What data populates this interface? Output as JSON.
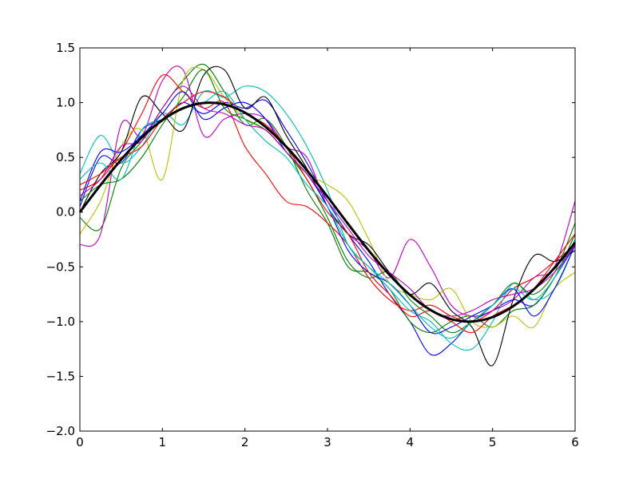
{
  "chart_data": {
    "type": "line",
    "title": "",
    "xlabel": "",
    "ylabel": "",
    "xlim": [
      0,
      6
    ],
    "ylim": [
      -2.0,
      1.5
    ],
    "x_ticks": [
      0,
      1,
      2,
      3,
      4,
      5,
      6
    ],
    "x_tick_labels": [
      "0",
      "1",
      "2",
      "3",
      "4",
      "5",
      "6"
    ],
    "y_ticks": [
      -2.0,
      -1.5,
      -1.0,
      -0.5,
      0.0,
      0.5,
      1.0,
      1.5
    ],
    "y_tick_labels": [
      "−2.0",
      "−1.5",
      "−1.0",
      "−0.5",
      "0.0",
      "0.5",
      "1.0",
      "1.5"
    ],
    "grid": false,
    "legend": "none",
    "x": [
      0,
      0.25,
      0.5,
      0.75,
      1.0,
      1.25,
      1.5,
      1.75,
      2.0,
      2.25,
      2.5,
      2.75,
      3.0,
      3.25,
      3.5,
      3.75,
      4.0,
      4.25,
      4.5,
      4.75,
      5.0,
      5.25,
      5.5,
      5.75,
      6.0
    ],
    "series": [
      {
        "color": "#0000ff",
        "values": [
          0.05,
          0.5,
          0.45,
          0.75,
          0.85,
          1.0,
          0.9,
          1.0,
          0.95,
          1.02,
          0.75,
          0.45,
          0.1,
          -0.2,
          -0.45,
          -0.75,
          -1.0,
          -1.3,
          -1.2,
          -1.0,
          -0.9,
          -0.8,
          -0.85,
          -0.6,
          -0.3
        ]
      },
      {
        "color": "#008000",
        "values": [
          -0.05,
          -0.15,
          0.4,
          0.65,
          0.95,
          1.2,
          1.35,
          1.1,
          0.8,
          0.85,
          0.6,
          0.2,
          -0.1,
          -0.5,
          -0.55,
          -0.7,
          -1.0,
          -1.1,
          -1.0,
          -0.95,
          -1.05,
          -0.9,
          -0.85,
          -0.6,
          -0.2
        ]
      },
      {
        "color": "#ff0000",
        "values": [
          0.2,
          0.3,
          0.55,
          0.9,
          1.25,
          1.1,
          0.95,
          1.0,
          0.6,
          0.35,
          0.1,
          0.05,
          -0.1,
          -0.3,
          -0.6,
          -0.8,
          -0.9,
          -0.85,
          -0.95,
          -1.0,
          -0.9,
          -0.7,
          -0.6,
          -0.45,
          -0.3
        ]
      },
      {
        "color": "#00bfbf",
        "values": [
          0.35,
          0.7,
          0.45,
          0.6,
          0.9,
          0.8,
          1.1,
          1.05,
          1.15,
          1.1,
          0.9,
          0.6,
          0.2,
          -0.3,
          -0.5,
          -0.7,
          -0.9,
          -1.0,
          -1.2,
          -1.25,
          -1.0,
          -0.65,
          -0.8,
          -0.7,
          -0.3
        ]
      },
      {
        "color": "#bf00bf",
        "values": [
          -0.3,
          -0.2,
          0.8,
          0.7,
          1.2,
          1.3,
          0.7,
          0.85,
          0.9,
          0.85,
          0.6,
          0.5,
          0.05,
          -0.2,
          -0.35,
          -0.6,
          -0.25,
          -0.5,
          -0.85,
          -0.95,
          -0.9,
          -0.8,
          -0.6,
          -0.5,
          0.1
        ]
      },
      {
        "color": "#bfbf00",
        "values": [
          -0.2,
          0.1,
          0.6,
          0.75,
          0.3,
          1.2,
          1.3,
          1.05,
          0.85,
          0.75,
          0.55,
          0.35,
          0.25,
          0.1,
          -0.25,
          -0.65,
          -0.75,
          -0.8,
          -0.7,
          -1.0,
          -1.05,
          -0.95,
          -1.05,
          -0.7,
          -0.55
        ]
      },
      {
        "color": "#000000",
        "values": [
          0.0,
          0.35,
          0.55,
          1.05,
          0.9,
          0.75,
          1.25,
          1.3,
          0.95,
          1.05,
          0.7,
          0.4,
          0.05,
          -0.2,
          -0.3,
          -0.55,
          -0.75,
          -0.65,
          -0.9,
          -1.05,
          -1.4,
          -0.8,
          -0.4,
          -0.45,
          -0.35
        ]
      },
      {
        "color": "#0000ff",
        "values": [
          0.1,
          0.55,
          0.55,
          0.7,
          0.9,
          1.1,
          0.85,
          0.95,
          1.0,
          0.85,
          0.55,
          0.35,
          0.05,
          -0.35,
          -0.55,
          -0.65,
          -0.85,
          -1.1,
          -1.05,
          -0.95,
          -0.85,
          -0.7,
          -0.95,
          -0.7,
          -0.3
        ]
      },
      {
        "color": "#008000",
        "values": [
          0.1,
          0.25,
          0.3,
          0.5,
          0.8,
          1.05,
          1.3,
          0.95,
          0.85,
          0.75,
          0.55,
          0.3,
          -0.05,
          -0.45,
          -0.6,
          -0.55,
          -0.8,
          -0.95,
          -1.1,
          -1.0,
          -0.85,
          -0.65,
          -0.75,
          -0.55,
          -0.1
        ]
      },
      {
        "color": "#ff0000",
        "values": [
          0.25,
          0.35,
          0.5,
          0.6,
          0.85,
          1.0,
          1.1,
          1.05,
          0.9,
          0.8,
          0.6,
          0.3,
          0.0,
          -0.2,
          -0.55,
          -0.75,
          -0.95,
          -0.9,
          -1.0,
          -1.1,
          -0.95,
          -0.85,
          -0.7,
          -0.45,
          -0.2
        ]
      },
      {
        "color": "#00bfbf",
        "values": [
          0.3,
          0.45,
          0.3,
          0.75,
          0.85,
          0.95,
          1.0,
          1.1,
          0.85,
          0.65,
          0.5,
          0.25,
          0.05,
          -0.3,
          -0.5,
          -0.65,
          -0.85,
          -1.05,
          -1.15,
          -1.0,
          -0.85,
          -0.7,
          -0.8,
          -0.6,
          -0.25
        ]
      },
      {
        "color": "#bf00bf",
        "values": [
          0.15,
          0.3,
          0.6,
          0.65,
          0.95,
          1.15,
          0.95,
          0.9,
          0.8,
          0.75,
          0.55,
          0.35,
          0.1,
          -0.15,
          -0.4,
          -0.55,
          -0.7,
          -0.9,
          -0.95,
          -0.9,
          -0.8,
          -0.75,
          -0.7,
          -0.55,
          -0.3
        ]
      },
      {
        "color": "#000000",
        "values": [
          0.0,
          0.247,
          0.479,
          0.682,
          0.841,
          0.949,
          0.997,
          0.984,
          0.909,
          0.778,
          0.598,
          0.382,
          0.141,
          -0.108,
          -0.351,
          -0.572,
          -0.757,
          -0.895,
          -0.978,
          -0.999,
          -0.959,
          -0.859,
          -0.706,
          -0.509,
          -0.279
        ],
        "bold": true
      }
    ]
  }
}
